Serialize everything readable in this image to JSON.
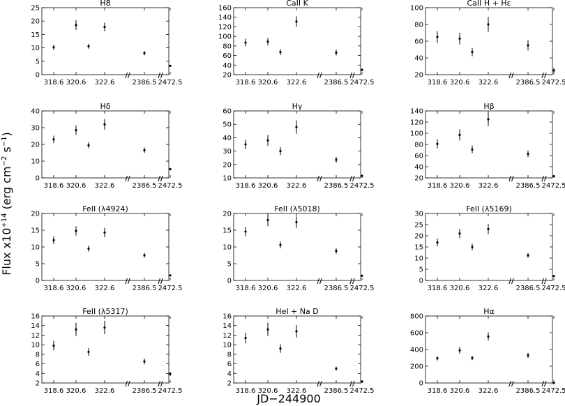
{
  "figure": {
    "ylabel_main": "Flux x10",
    "ylabel_exp": "+14",
    "ylabel_unit_a": " (erg cm",
    "ylabel_unit_exp1": "−2",
    "ylabel_unit_b": " s",
    "ylabel_unit_exp2": "−1",
    "ylabel_unit_c": ")",
    "xlabel": "JD−244900",
    "break_mark": "//"
  },
  "chart_data": [
    {
      "type": "scatter",
      "title": "H8",
      "ylim": [
        0,
        25
      ],
      "yticks": [
        0,
        5,
        10,
        15,
        20,
        25
      ],
      "x_ticks": [
        "318.6",
        "320.6",
        "322.6",
        "2386.5",
        "2472.5"
      ],
      "points": [
        {
          "x": 318.6,
          "y": 10.2,
          "err": 1.0
        },
        {
          "x": 320.6,
          "y": 18.5,
          "err": 1.8
        },
        {
          "x": 321.6,
          "y": 10.6,
          "err": 0.9
        },
        {
          "x": 322.6,
          "y": 17.8,
          "err": 1.6
        },
        {
          "x": 2386.5,
          "y": 8.0,
          "err": 0.8
        },
        {
          "x": 2472.5,
          "y": 3.3,
          "err": 0.3
        }
      ]
    },
    {
      "type": "scatter",
      "title": "CaII K",
      "ylim": [
        20,
        160
      ],
      "yticks": [
        20,
        40,
        60,
        80,
        100,
        120,
        140,
        160
      ],
      "x_ticks": [
        "318.6",
        "320.6",
        "322.6",
        "2386.5",
        "2472.5"
      ],
      "points": [
        {
          "x": 318.6,
          "y": 87,
          "err": 8
        },
        {
          "x": 320.6,
          "y": 89,
          "err": 8
        },
        {
          "x": 321.6,
          "y": 67,
          "err": 6
        },
        {
          "x": 322.6,
          "y": 131,
          "err": 11
        },
        {
          "x": 2386.5,
          "y": 66,
          "err": 6
        },
        {
          "x": 2472.5,
          "y": 30,
          "err": 3
        }
      ]
    },
    {
      "type": "scatter",
      "title": "CaII H + Hε",
      "ylim": [
        20,
        100
      ],
      "yticks": [
        20,
        40,
        60,
        80,
        100
      ],
      "x_ticks": [
        "318.6",
        "320.6",
        "322.6",
        "2386.5",
        "2472.5"
      ],
      "points": [
        {
          "x": 318.6,
          "y": 65,
          "err": 7
        },
        {
          "x": 320.6,
          "y": 63,
          "err": 7
        },
        {
          "x": 321.6,
          "y": 47,
          "err": 5
        },
        {
          "x": 322.6,
          "y": 80,
          "err": 9
        },
        {
          "x": 2386.5,
          "y": 55,
          "err": 6
        },
        {
          "x": 2472.5,
          "y": 25,
          "err": 3
        }
      ]
    },
    {
      "type": "scatter",
      "title": "Hδ",
      "ylim": [
        0,
        40
      ],
      "yticks": [
        0,
        10,
        20,
        30,
        40
      ],
      "x_ticks": [
        "318.6",
        "320.6",
        "322.6",
        "2386.5",
        "2472.5"
      ],
      "points": [
        {
          "x": 318.6,
          "y": 23,
          "err": 2.2
        },
        {
          "x": 320.6,
          "y": 28.5,
          "err": 2.8
        },
        {
          "x": 321.6,
          "y": 19.5,
          "err": 1.8
        },
        {
          "x": 322.6,
          "y": 32,
          "err": 3.2
        },
        {
          "x": 2386.5,
          "y": 16.5,
          "err": 1.6
        },
        {
          "x": 2472.5,
          "y": 5.2,
          "err": 0.5
        }
      ]
    },
    {
      "type": "scatter",
      "title": "Hγ",
      "ylim": [
        10,
        60
      ],
      "yticks": [
        10,
        20,
        30,
        40,
        50,
        60
      ],
      "x_ticks": [
        "318.6",
        "320.6",
        "322.6",
        "2386.5",
        "2472.5"
      ],
      "points": [
        {
          "x": 318.6,
          "y": 35,
          "err": 3.5
        },
        {
          "x": 320.6,
          "y": 38,
          "err": 4
        },
        {
          "x": 321.6,
          "y": 30,
          "err": 3
        },
        {
          "x": 322.6,
          "y": 48,
          "err": 5
        },
        {
          "x": 2386.5,
          "y": 23.5,
          "err": 2.2
        },
        {
          "x": 2472.5,
          "y": 11.5,
          "err": 1
        }
      ]
    },
    {
      "type": "scatter",
      "title": "Hβ",
      "ylim": [
        20,
        140
      ],
      "yticks": [
        20,
        40,
        60,
        80,
        100,
        120,
        140
      ],
      "x_ticks": [
        "318.6",
        "320.6",
        "322.6",
        "2386.5",
        "2472.5"
      ],
      "points": [
        {
          "x": 318.6,
          "y": 81,
          "err": 8
        },
        {
          "x": 320.6,
          "y": 97,
          "err": 10
        },
        {
          "x": 321.6,
          "y": 71,
          "err": 7
        },
        {
          "x": 322.6,
          "y": 125,
          "err": 12
        },
        {
          "x": 2386.5,
          "y": 63,
          "err": 6
        },
        {
          "x": 2472.5,
          "y": 23,
          "err": 2
        }
      ]
    },
    {
      "type": "scatter",
      "title": "FeII (λ4924)",
      "ylim": [
        0,
        20
      ],
      "yticks": [
        0,
        5,
        10,
        15,
        20
      ],
      "x_ticks": [
        "318.6",
        "320.6",
        "322.6",
        "2386.5",
        "2472.5"
      ],
      "points": [
        {
          "x": 318.6,
          "y": 12,
          "err": 1.2
        },
        {
          "x": 320.6,
          "y": 14.8,
          "err": 1.4
        },
        {
          "x": 321.6,
          "y": 9.5,
          "err": 0.9
        },
        {
          "x": 322.6,
          "y": 14.3,
          "err": 1.4
        },
        {
          "x": 2386.5,
          "y": 7.5,
          "err": 0.7
        },
        {
          "x": 2472.5,
          "y": 1.5,
          "err": 0.2
        }
      ]
    },
    {
      "type": "scatter",
      "title": "FeII (λ5018)",
      "ylim": [
        0,
        20
      ],
      "yticks": [
        0,
        5,
        10,
        15,
        20
      ],
      "x_ticks": [
        "318.6",
        "320.6",
        "322.6",
        "2386.5",
        "2472.5"
      ],
      "points": [
        {
          "x": 318.6,
          "y": 14.6,
          "err": 1.4
        },
        {
          "x": 320.6,
          "y": 18,
          "err": 1.8
        },
        {
          "x": 321.6,
          "y": 10.6,
          "err": 1
        },
        {
          "x": 322.6,
          "y": 17.4,
          "err": 1.7
        },
        {
          "x": 2386.5,
          "y": 8.8,
          "err": 0.8
        },
        {
          "x": 2472.5,
          "y": 1.4,
          "err": 0.2
        }
      ]
    },
    {
      "type": "scatter",
      "title": "FeII (λ5169)",
      "ylim": [
        0,
        30
      ],
      "yticks": [
        0,
        5,
        10,
        15,
        20,
        25,
        30
      ],
      "x_ticks": [
        "318.6",
        "320.6",
        "322.6",
        "2386.5",
        "2472.5"
      ],
      "points": [
        {
          "x": 318.6,
          "y": 17,
          "err": 1.7
        },
        {
          "x": 320.6,
          "y": 21,
          "err": 2.1
        },
        {
          "x": 321.6,
          "y": 15,
          "err": 1.5
        },
        {
          "x": 322.6,
          "y": 23,
          "err": 2.3
        },
        {
          "x": 2386.5,
          "y": 11.2,
          "err": 1.1
        },
        {
          "x": 2472.5,
          "y": 2,
          "err": 0.2
        }
      ]
    },
    {
      "type": "scatter",
      "title": "FeII (λ5317)",
      "ylim": [
        2,
        16
      ],
      "yticks": [
        2,
        4,
        6,
        8,
        10,
        12,
        14,
        16
      ],
      "x_ticks": [
        "318.6",
        "320.6",
        "322.6",
        "2386.5",
        "2472.5"
      ],
      "points": [
        {
          "x": 318.6,
          "y": 9.8,
          "err": 1
        },
        {
          "x": 320.6,
          "y": 13.2,
          "err": 1.4
        },
        {
          "x": 321.6,
          "y": 8.5,
          "err": 0.8
        },
        {
          "x": 322.6,
          "y": 13.6,
          "err": 1.4
        },
        {
          "x": 2386.5,
          "y": 6.5,
          "err": 0.6
        },
        {
          "x": 2472.5,
          "y": 3.9,
          "err": 0.4
        }
      ]
    },
    {
      "type": "scatter",
      "title": "HeI + Na D",
      "ylim": [
        2,
        16
      ],
      "yticks": [
        2,
        4,
        6,
        8,
        10,
        12,
        14,
        16
      ],
      "x_ticks": [
        "318.6",
        "320.6",
        "322.6",
        "2386.5",
        "2472.5"
      ],
      "points": [
        {
          "x": 318.6,
          "y": 11.4,
          "err": 1.1
        },
        {
          "x": 320.6,
          "y": 13.2,
          "err": 1.4
        },
        {
          "x": 321.6,
          "y": 9.2,
          "err": 0.9
        },
        {
          "x": 322.6,
          "y": 12.8,
          "err": 1.3
        },
        {
          "x": 2386.5,
          "y": 5,
          "err": 0.4
        },
        {
          "x": 2472.5,
          "y": 2.3,
          "err": 0.2
        }
      ]
    },
    {
      "type": "scatter",
      "title": "Hα",
      "ylim": [
        0,
        800
      ],
      "yticks": [
        0,
        200,
        400,
        600,
        800
      ],
      "x_ticks": [
        "318.6",
        "320.6",
        "322.6",
        "2386.5",
        "2472.5"
      ],
      "points": [
        {
          "x": 318.6,
          "y": 295,
          "err": 25
        },
        {
          "x": 320.6,
          "y": 390,
          "err": 40
        },
        {
          "x": 321.6,
          "y": 298,
          "err": 25
        },
        {
          "x": 322.6,
          "y": 555,
          "err": 50
        },
        {
          "x": 2386.5,
          "y": 330,
          "err": 30
        },
        {
          "x": 2472.5,
          "y": 0,
          "err": 0
        }
      ]
    }
  ]
}
